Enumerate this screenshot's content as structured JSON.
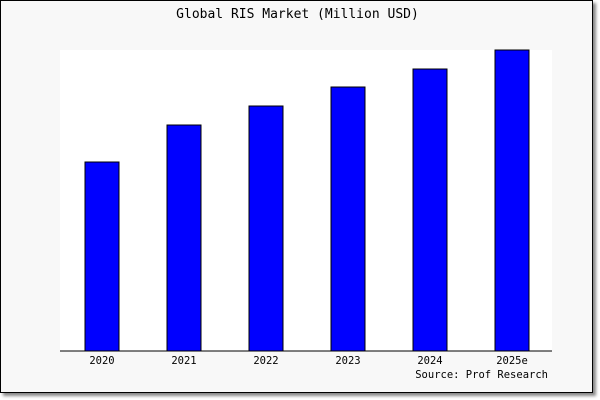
{
  "chart_data": {
    "type": "bar",
    "title": "Global RIS Market (Million USD)",
    "categories": [
      "2020",
      "2021",
      "2022",
      "2023",
      "2024",
      "2025e"
    ],
    "values": [
      189,
      226,
      245,
      264,
      282,
      301
    ],
    "xlabel": "",
    "ylabel": "",
    "ylim": [
      0,
      301
    ],
    "grid": false,
    "bar_color": "#0000ff",
    "source": "Source: Prof Research"
  }
}
